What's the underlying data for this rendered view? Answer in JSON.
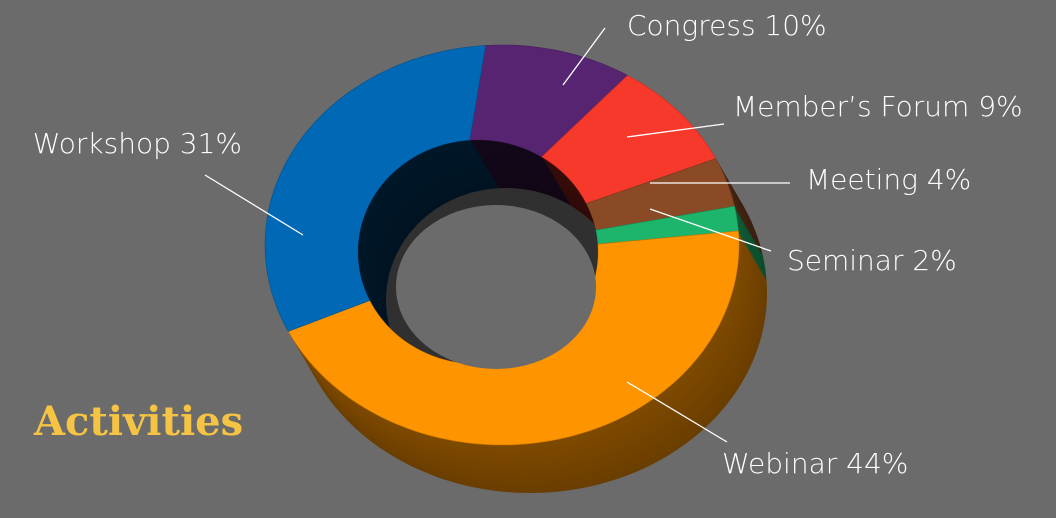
{
  "chart_data": {
    "type": "pie",
    "donut": true,
    "title": "Activities",
    "values": [
      10,
      9,
      4,
      2,
      44,
      31
    ],
    "value_labels": [
      "Congress 10%",
      "Member’s Forum 9%",
      "Meeting 4%",
      "Seminar 2%",
      "Webinar 44%",
      "Workshop 31%"
    ],
    "colors": [
      "#572472",
      "#f7392c",
      "#8b4a26",
      "#1db46b",
      "#fd9400",
      "#0068b4"
    ]
  }
}
